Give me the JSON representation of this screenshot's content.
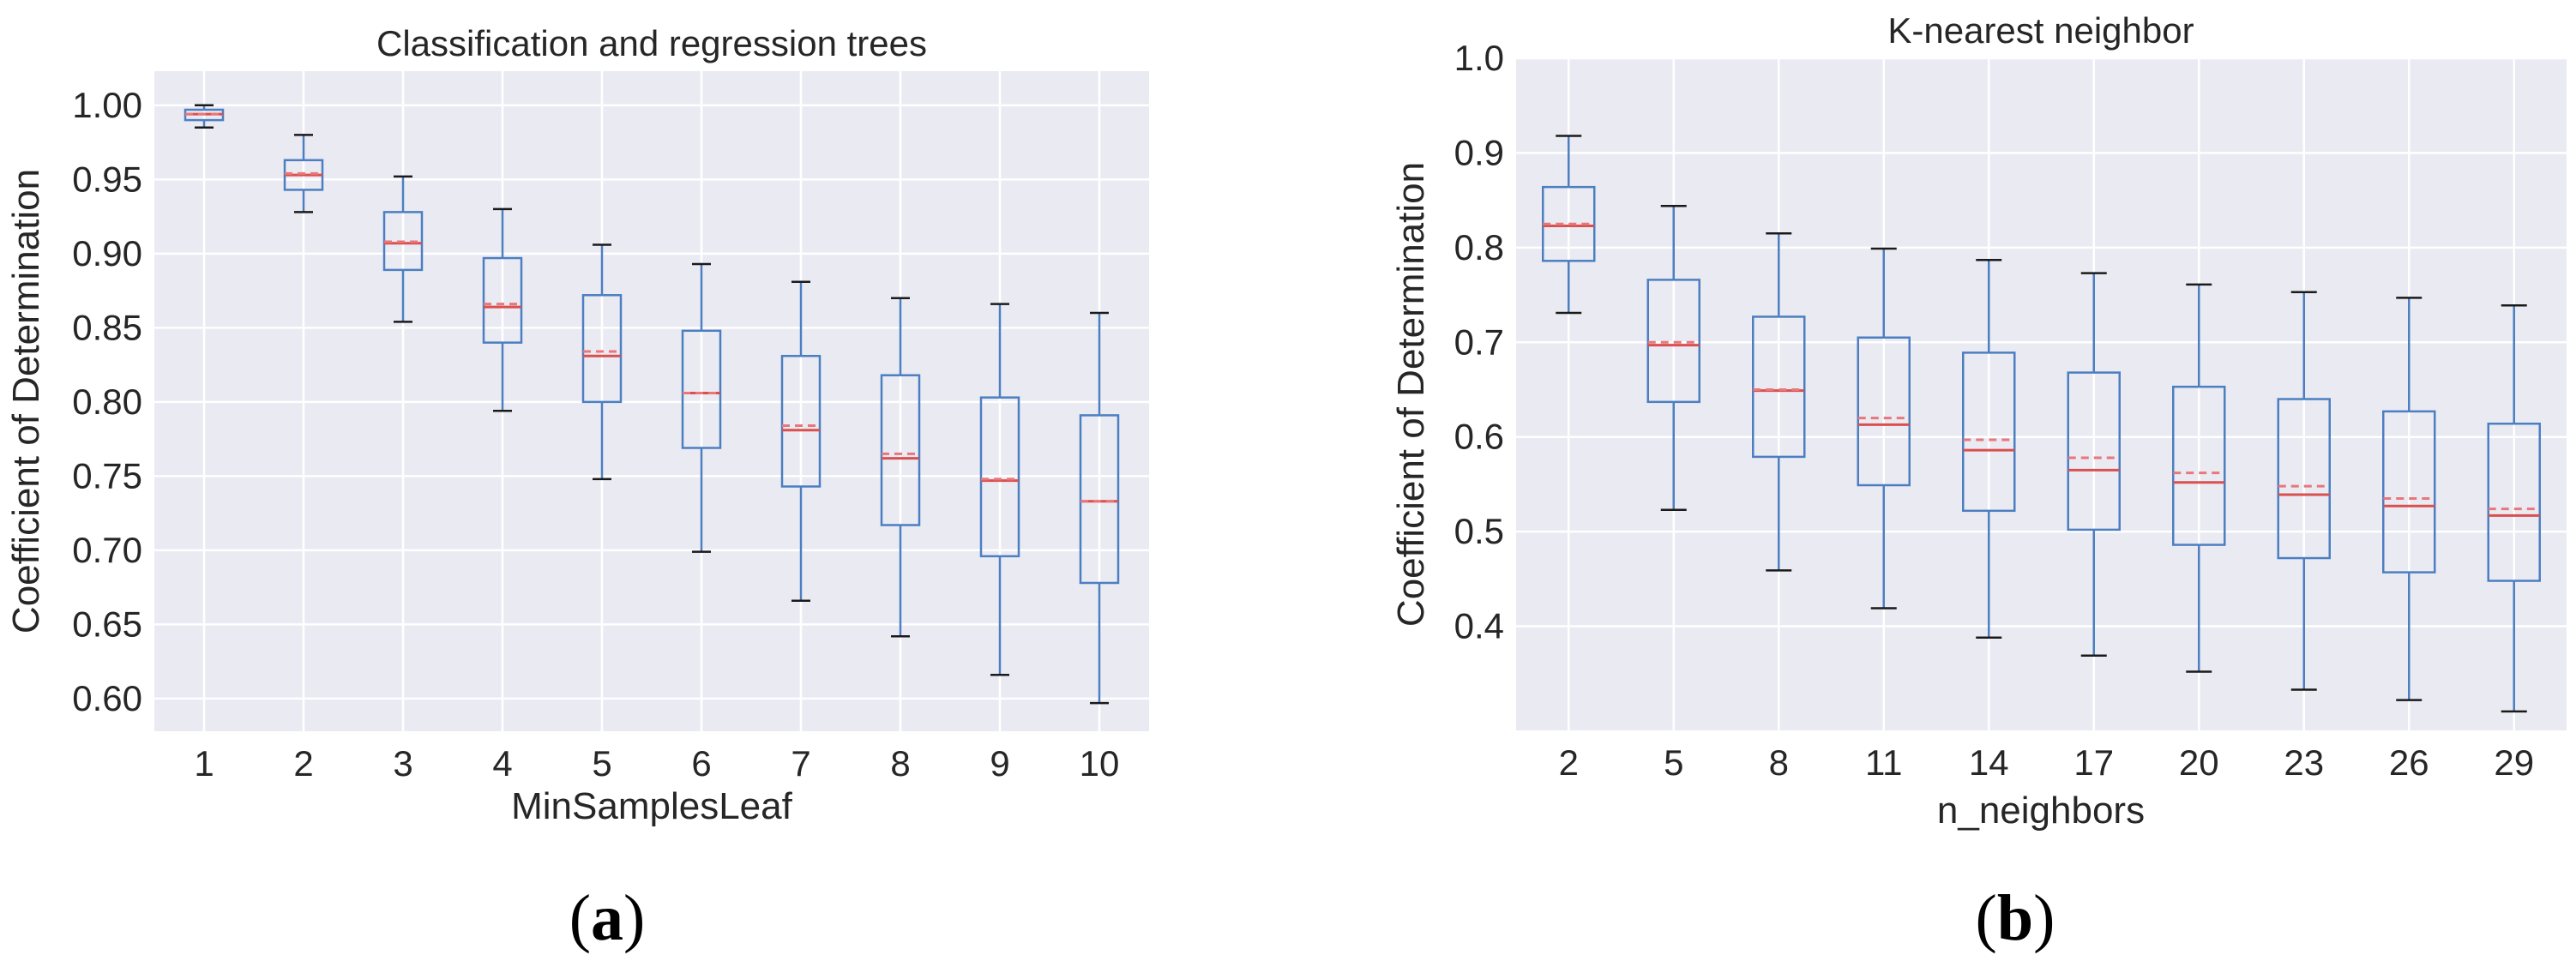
{
  "colors": {
    "plot_background": "#eaeaf2",
    "grid": "#ffffff",
    "box": "#4c7fc1",
    "cap": "#1a1a1a",
    "median": "#d9504f",
    "mean": "#e8777a",
    "text": "#262626"
  },
  "chart_data": [
    {
      "type": "box",
      "panel": "(a)",
      "panel_parts": {
        "open": "(",
        "letter": "a",
        "close": ")"
      },
      "title": "Classification and regression trees",
      "xlabel": "MinSamplesLeaf",
      "ylabel": "Coefficient of Determination",
      "ylim": [
        0.578,
        1.023
      ],
      "yticks": [
        0.6,
        0.65,
        0.7,
        0.75,
        0.8,
        0.85,
        0.9,
        0.95,
        1.0
      ],
      "ytick_labels": [
        "0.60",
        "0.65",
        "0.70",
        "0.75",
        "0.80",
        "0.85",
        "0.90",
        "0.95",
        "1.00"
      ],
      "grid": true,
      "categories": [
        "1",
        "2",
        "3",
        "4",
        "5",
        "6",
        "7",
        "8",
        "9",
        "10"
      ],
      "boxes": [
        {
          "whislo": 0.985,
          "q1": 0.99,
          "med": 0.994,
          "mean": 0.994,
          "q3": 0.997,
          "whishi": 1.0
        },
        {
          "whislo": 0.928,
          "q1": 0.943,
          "med": 0.953,
          "mean": 0.954,
          "q3": 0.963,
          "whishi": 0.98
        },
        {
          "whislo": 0.854,
          "q1": 0.889,
          "med": 0.907,
          "mean": 0.908,
          "q3": 0.928,
          "whishi": 0.952
        },
        {
          "whislo": 0.794,
          "q1": 0.84,
          "med": 0.864,
          "mean": 0.866,
          "q3": 0.897,
          "whishi": 0.93
        },
        {
          "whislo": 0.748,
          "q1": 0.8,
          "med": 0.831,
          "mean": 0.834,
          "q3": 0.872,
          "whishi": 0.906
        },
        {
          "whislo": 0.699,
          "q1": 0.769,
          "med": 0.806,
          "mean": 0.806,
          "q3": 0.848,
          "whishi": 0.893
        },
        {
          "whislo": 0.666,
          "q1": 0.743,
          "med": 0.781,
          "mean": 0.784,
          "q3": 0.831,
          "whishi": 0.881
        },
        {
          "whislo": 0.642,
          "q1": 0.717,
          "med": 0.762,
          "mean": 0.765,
          "q3": 0.818,
          "whishi": 0.87
        },
        {
          "whislo": 0.616,
          "q1": 0.696,
          "med": 0.747,
          "mean": 0.748,
          "q3": 0.803,
          "whishi": 0.866
        },
        {
          "whislo": 0.597,
          "q1": 0.678,
          "med": 0.733,
          "mean": 0.733,
          "q3": 0.791,
          "whishi": 0.86
        }
      ]
    },
    {
      "type": "box",
      "panel": "(b)",
      "panel_parts": {
        "open": "(",
        "letter": "b",
        "close": ")"
      },
      "title": "K-nearest neighbor",
      "xlabel": "n_neighbors",
      "ylabel": "Coefficient of Determination",
      "ylim": [
        0.29,
        1.0
      ],
      "yticks": [
        0.4,
        0.5,
        0.6,
        0.7,
        0.8,
        0.9,
        1.0
      ],
      "ytick_labels": [
        "0.4",
        "0.5",
        "0.6",
        "0.7",
        "0.8",
        "0.9",
        "1.0"
      ],
      "grid": true,
      "categories": [
        "2",
        "5",
        "8",
        "11",
        "14",
        "17",
        "20",
        "23",
        "26",
        "29"
      ],
      "boxes": [
        {
          "whislo": 0.731,
          "q1": 0.786,
          "med": 0.823,
          "mean": 0.825,
          "q3": 0.864,
          "whishi": 0.918
        },
        {
          "whislo": 0.523,
          "q1": 0.637,
          "med": 0.697,
          "mean": 0.7,
          "q3": 0.766,
          "whishi": 0.844
        },
        {
          "whislo": 0.459,
          "q1": 0.579,
          "med": 0.649,
          "mean": 0.65,
          "q3": 0.727,
          "whishi": 0.815
        },
        {
          "whislo": 0.419,
          "q1": 0.549,
          "med": 0.613,
          "mean": 0.62,
          "q3": 0.705,
          "whishi": 0.799
        },
        {
          "whislo": 0.388,
          "q1": 0.522,
          "med": 0.586,
          "mean": 0.597,
          "q3": 0.689,
          "whishi": 0.787
        },
        {
          "whislo": 0.369,
          "q1": 0.502,
          "med": 0.565,
          "mean": 0.578,
          "q3": 0.668,
          "whishi": 0.773
        },
        {
          "whislo": 0.352,
          "q1": 0.486,
          "med": 0.552,
          "mean": 0.562,
          "q3": 0.653,
          "whishi": 0.761
        },
        {
          "whislo": 0.333,
          "q1": 0.472,
          "med": 0.539,
          "mean": 0.548,
          "q3": 0.64,
          "whishi": 0.753
        },
        {
          "whislo": 0.322,
          "q1": 0.457,
          "med": 0.527,
          "mean": 0.535,
          "q3": 0.627,
          "whishi": 0.747
        },
        {
          "whislo": 0.31,
          "q1": 0.448,
          "med": 0.517,
          "mean": 0.524,
          "q3": 0.614,
          "whishi": 0.739
        }
      ]
    }
  ]
}
